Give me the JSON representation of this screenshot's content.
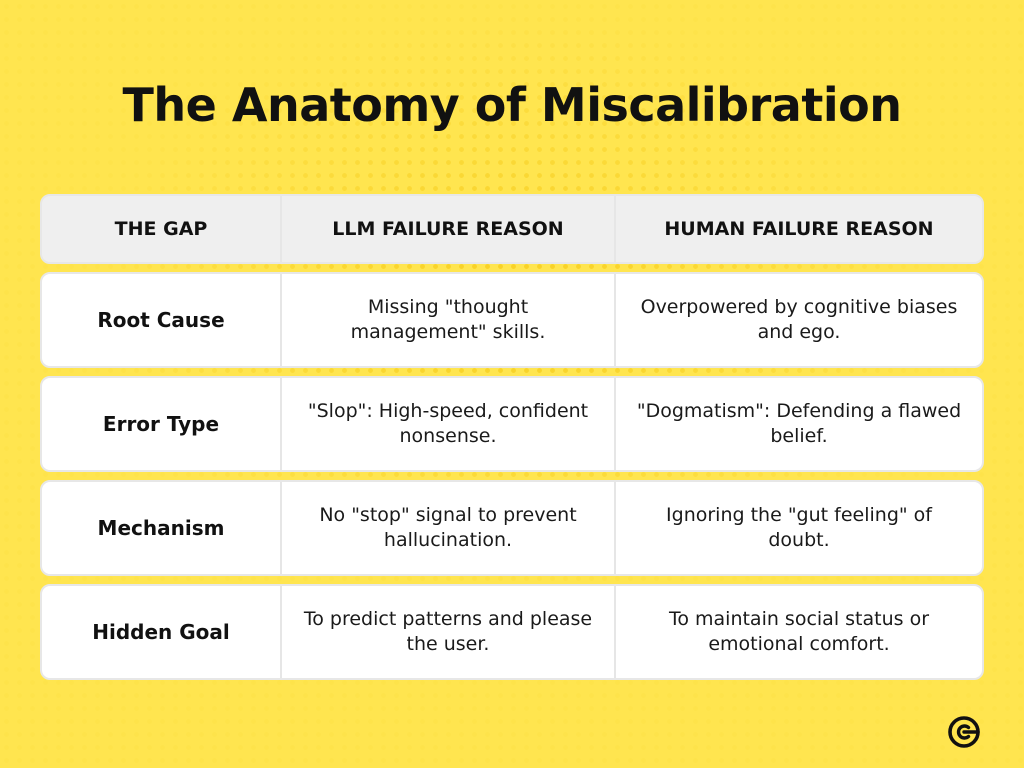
{
  "title": "The Anatomy of Miscalibration",
  "table": {
    "headers": [
      "THE GAP",
      "LLM FAILURE REASON",
      "HUMAN FAILURE REASON"
    ],
    "rows": [
      {
        "gap": "Root Cause",
        "llm": "Missing \"thought management\" skills.",
        "human": "Overpowered by cognitive biases and ego."
      },
      {
        "gap": "Error Type",
        "llm": "\"Slop\": High-speed, confident nonsense.",
        "human": "\"Dogmatism\": Defending a flawed belief."
      },
      {
        "gap": "Mechanism",
        "llm": "No \"stop\" signal to prevent hallucination.",
        "human": "Ignoring the \"gut feeling\" of doubt."
      },
      {
        "gap": "Hidden Goal",
        "llm": "To predict patterns and please the user.",
        "human": "To maintain social status or emotional comfort."
      }
    ]
  },
  "logo": {
    "icon": "circle-c-logo-icon"
  },
  "colors": {
    "background": "#ffe54f",
    "dots": "#f7cf22",
    "header_row": "#efefef",
    "row": "#ffffff",
    "text": "#111111"
  }
}
